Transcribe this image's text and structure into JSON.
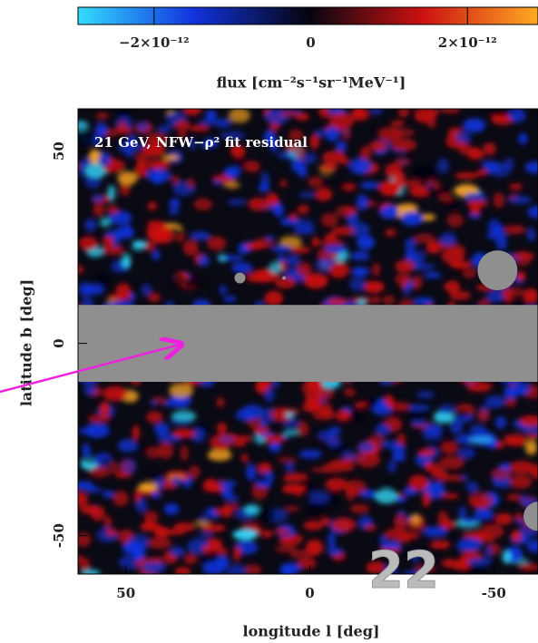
{
  "chart_data": {
    "type": "map",
    "annotation": "21 GeV, NFW−ρ² fit residual",
    "xlabel": "longitude l [deg]",
    "ylabel": "latitude b [deg]",
    "xlim": [
      63,
      -62
    ],
    "ylim": [
      -60,
      61
    ],
    "xticks": [
      50,
      0,
      -50
    ],
    "yticks": [
      -50,
      0,
      50
    ],
    "colorbar_label": "flux [cm⁻²s⁻¹sr⁻¹MeV⁻¹]",
    "clim": [
      -2.97e-12,
      2.9e-12
    ],
    "cticks": [
      {
        "value": -2e-12,
        "label": "−2×10⁻¹²"
      },
      0,
      {
        "value": 2e-12,
        "label": "2×10⁻¹²"
      }
    ],
    "colormap": [
      "#33ddff",
      "#1133dd",
      "#050510",
      "#cc1111",
      "#ffaa22"
    ],
    "mask_color": "#8f8f8f",
    "slide_number": "22"
  }
}
